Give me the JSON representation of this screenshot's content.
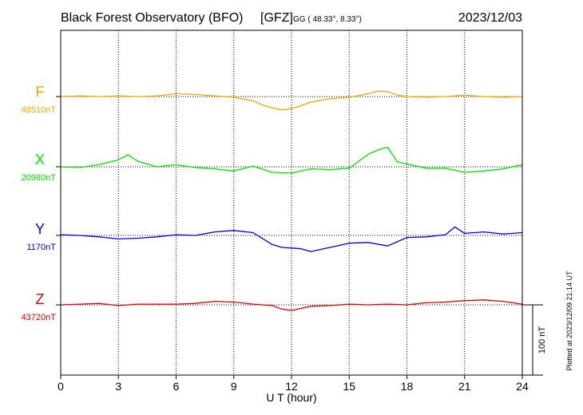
{
  "header": {
    "title": "Black Forest Observatory (BFO)",
    "tag": "[GFZ]",
    "coords": "GG ( 48.33°,   8.33°)",
    "date": "2023/12/03"
  },
  "side_note": "Plotted at 2023/12/09 21:14 UT",
  "scale_bar_label": "100 nT",
  "colors": {
    "F": "#f0a800",
    "X": "#00e000",
    "Y": "#0000dd",
    "Z": "#e00000",
    "axis": "#000000",
    "grid": "#000000"
  },
  "chart_data": {
    "type": "line",
    "xlabel": "U T (hour)",
    "xlim": [
      0,
      24
    ],
    "xticks": [
      0,
      3,
      6,
      9,
      12,
      15,
      18,
      21,
      24
    ],
    "grid": true,
    "units": "nT",
    "series": [
      {
        "name": "F",
        "baseline_label": "48510nT",
        "baseline": 48510,
        "x": [
          0,
          1,
          2,
          3,
          4,
          5,
          6,
          7,
          8,
          9,
          10,
          10.5,
          11,
          11.5,
          12,
          12.5,
          13,
          14,
          15,
          16,
          16.5,
          17,
          17.5,
          18,
          19,
          20,
          21,
          22,
          23,
          24
        ],
        "y": [
          48510,
          48511,
          48510,
          48511,
          48510,
          48511,
          48514,
          48513,
          48511,
          48509,
          48504,
          48498,
          48494,
          48491,
          48493,
          48497,
          48502,
          48507,
          48509,
          48514,
          48518,
          48517,
          48512,
          48510,
          48509,
          48510,
          48512,
          48510,
          48509,
          48510
        ]
      },
      {
        "name": "X",
        "baseline_label": "20980nT",
        "baseline": 20980,
        "x": [
          0,
          1,
          2,
          3,
          3.5,
          4,
          5,
          6,
          7,
          8,
          9,
          10,
          11,
          12,
          13,
          14,
          15,
          15.5,
          16,
          16.5,
          17,
          17.5,
          18,
          19,
          20,
          21,
          22,
          23,
          24
        ],
        "y": [
          20980,
          20979,
          20983,
          20990,
          20997,
          20988,
          20980,
          20983,
          20979,
          20977,
          20974,
          20981,
          20972,
          20971,
          20977,
          20976,
          20978,
          20988,
          20998,
          21004,
          21008,
          20987,
          20984,
          20978,
          20978,
          20972,
          20974,
          20977,
          20983
        ]
      },
      {
        "name": "Y",
        "baseline_label": "1170nT",
        "baseline": 1170,
        "x": [
          0,
          1,
          2,
          3,
          4,
          5,
          6,
          7,
          8,
          9,
          10,
          11,
          11.5,
          12,
          12.5,
          13,
          14,
          15,
          16,
          17,
          17.5,
          18,
          19,
          20,
          20.5,
          21,
          22,
          23,
          24
        ],
        "y": [
          1171,
          1170,
          1168,
          1165,
          1166,
          1168,
          1171,
          1170,
          1175,
          1177,
          1174,
          1157,
          1153,
          1152,
          1151,
          1147,
          1153,
          1159,
          1160,
          1155,
          1161,
          1167,
          1168,
          1171,
          1182,
          1173,
          1175,
          1172,
          1174
        ]
      },
      {
        "name": "Z",
        "baseline_label": "43720nT",
        "baseline": 43720,
        "x": [
          0,
          1,
          2,
          3,
          4,
          5,
          6,
          7,
          8,
          9,
          10,
          11,
          11.5,
          12,
          12.5,
          13,
          14,
          15,
          16,
          17,
          18,
          19,
          20,
          21,
          22,
          23,
          24
        ],
        "y": [
          43720,
          43721,
          43722,
          43719,
          43721,
          43721,
          43721,
          43722,
          43725,
          43724,
          43721,
          43719,
          43714,
          43712,
          43715,
          43718,
          43719,
          43721,
          43720,
          43721,
          43720,
          43723,
          43724,
          43726,
          43727,
          43725,
          43721
        ]
      }
    ]
  }
}
